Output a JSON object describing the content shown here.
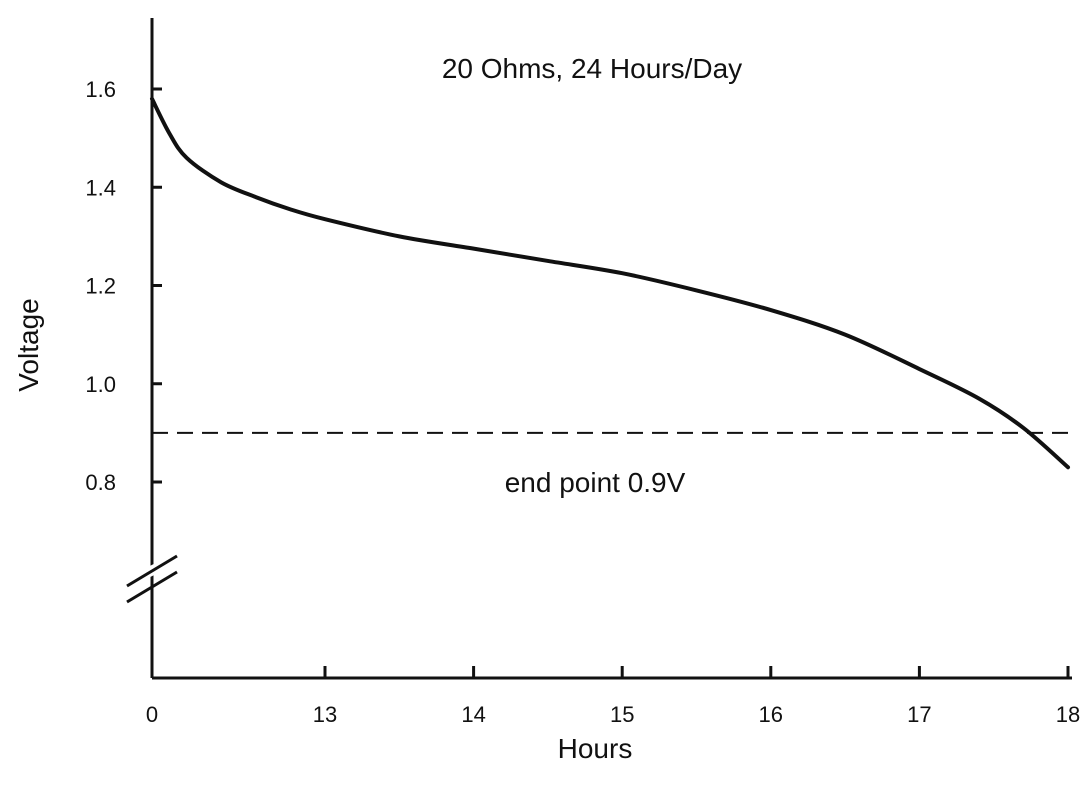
{
  "chart_data": {
    "type": "line",
    "title": "20 Ohms, 24 Hours/Day",
    "xlabel": "Hours",
    "ylabel": "Voltage",
    "x_ticks": [
      "0",
      "13",
      "14",
      "15",
      "16",
      "17",
      "18"
    ],
    "y_ticks": [
      "0.8",
      "1.0",
      "1.2",
      "1.4",
      "1.6"
    ],
    "x_axis_break": "between 0 and 12",
    "y_axis_break": "below 0.8",
    "grid": false,
    "series": [
      {
        "x": [
          0,
          12.1,
          12.2,
          12.4,
          12.6,
          12.8,
          13,
          13.5,
          14,
          14.5,
          15,
          15.5,
          16,
          16.5,
          17,
          17.4,
          17.7,
          18
        ],
        "y": [
          1.58,
          1.51,
          1.46,
          1.41,
          1.38,
          1.355,
          1.335,
          1.3,
          1.275,
          1.25,
          1.225,
          1.19,
          1.15,
          1.1,
          1.03,
          0.97,
          0.91,
          0.83
        ]
      }
    ],
    "reference_line": {
      "y": 0.9,
      "style": "dashed",
      "label": "end point 0.9V"
    }
  }
}
